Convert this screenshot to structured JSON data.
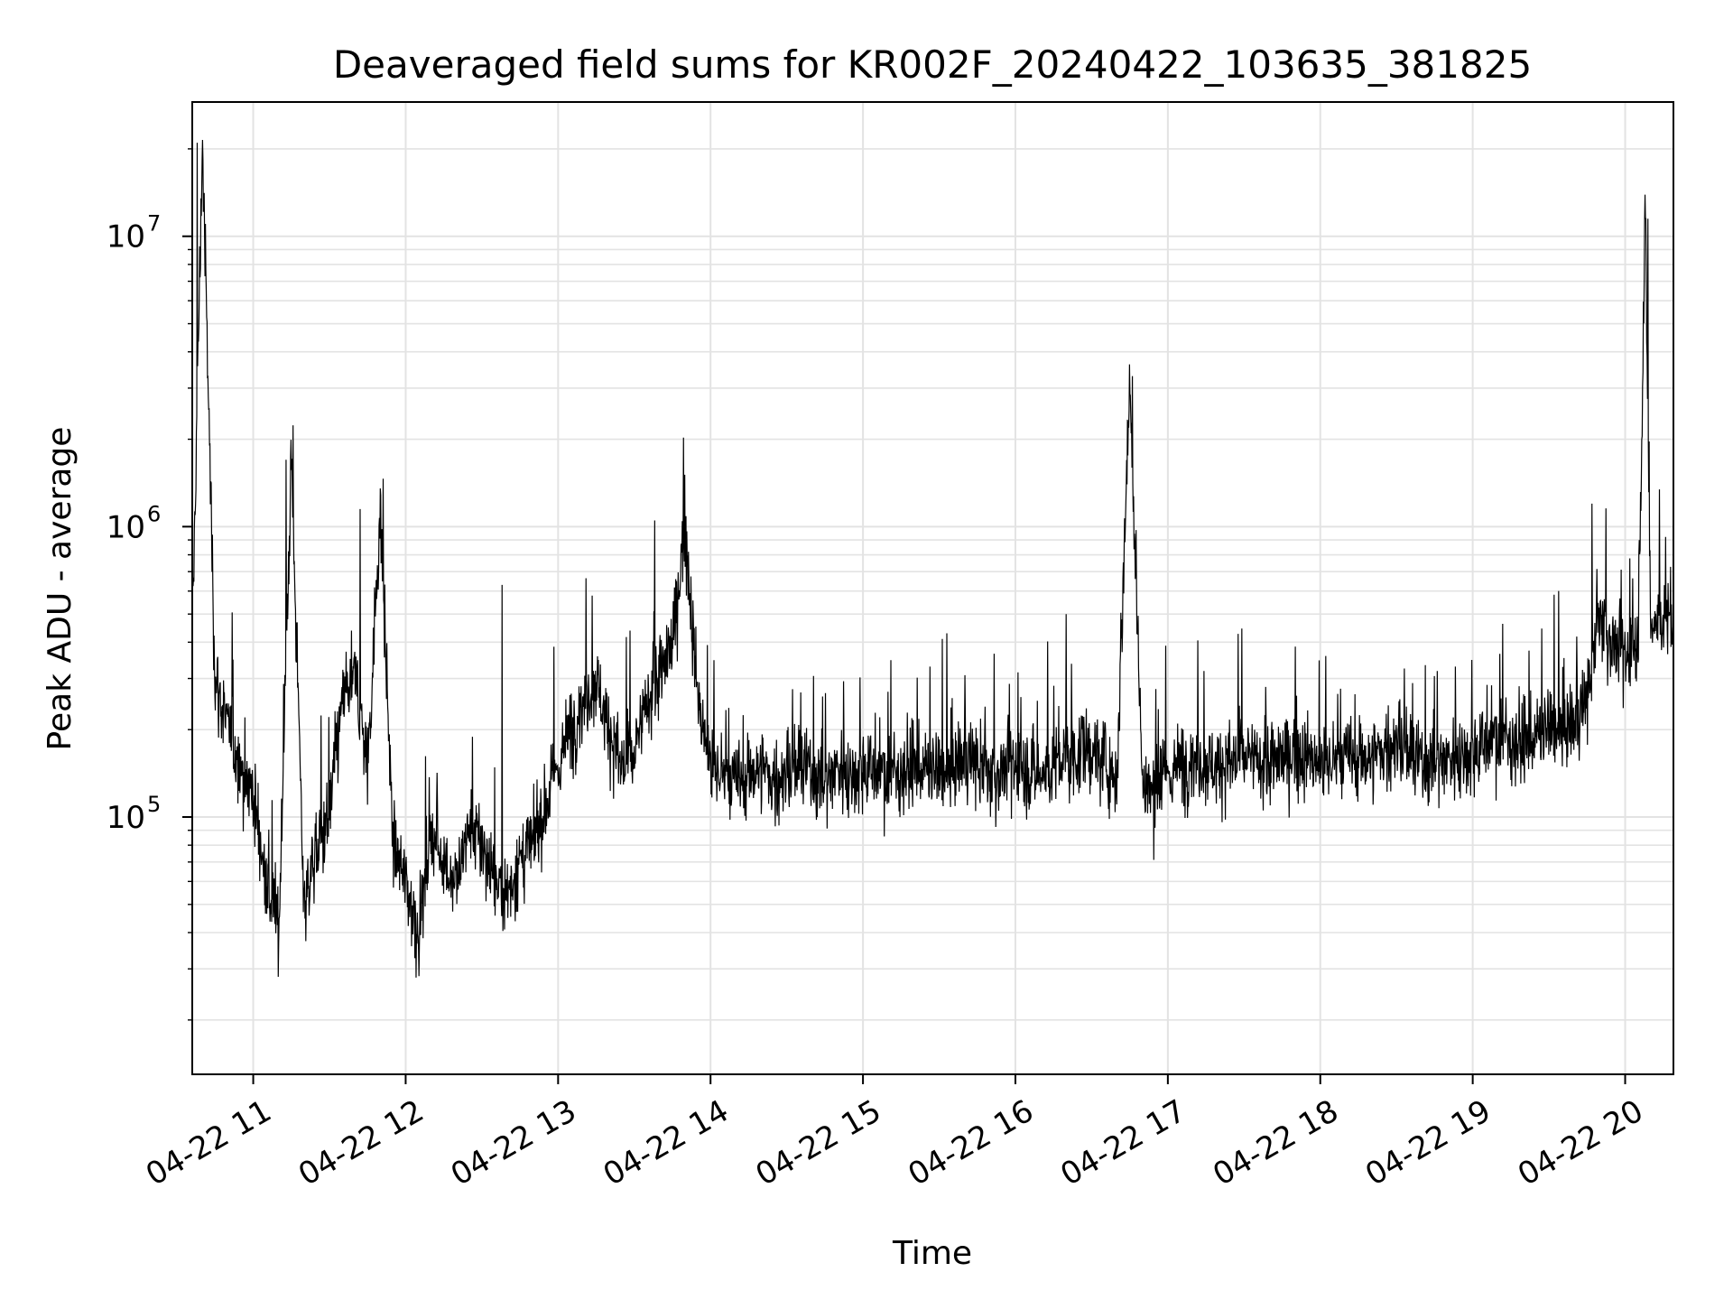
{
  "chart_data": {
    "type": "line",
    "title": "Deaveraged field sums for KR002F_20240422_103635_381825",
    "xlabel": "Time",
    "ylabel": "Peak ADU - average",
    "yscale": "log",
    "xlim": [
      "2024-04-22 10:36",
      "2024-04-22 20:19"
    ],
    "ylim": [
      13000,
      29000000
    ],
    "grid": true,
    "x_ticks": [
      {
        "time": "2024-04-22 11:00",
        "label": "04-22 11"
      },
      {
        "time": "2024-04-22 12:00",
        "label": "04-22 12"
      },
      {
        "time": "2024-04-22 13:00",
        "label": "04-22 13"
      },
      {
        "time": "2024-04-22 14:00",
        "label": "04-22 14"
      },
      {
        "time": "2024-04-22 15:00",
        "label": "04-22 15"
      },
      {
        "time": "2024-04-22 16:00",
        "label": "04-22 16"
      },
      {
        "time": "2024-04-22 17:00",
        "label": "04-22 17"
      },
      {
        "time": "2024-04-22 18:00",
        "label": "04-22 18"
      },
      {
        "time": "2024-04-22 19:00",
        "label": "04-22 19"
      },
      {
        "time": "2024-04-22 20:00",
        "label": "04-22 20"
      }
    ],
    "y_ticks": [
      {
        "value": 100000,
        "base": "10",
        "exp": "5"
      },
      {
        "value": 1000000,
        "base": "10",
        "exp": "6"
      },
      {
        "value": 10000000,
        "base": "10",
        "exp": "7"
      }
    ],
    "line_color": "#000000",
    "series": [
      {
        "x": [
          "2024-04-22 10:36",
          "2024-04-22 10:40",
          "2024-04-22 10:45",
          "2024-04-22 10:50",
          "2024-04-22 10:55",
          "2024-04-22 11:00",
          "2024-04-22 11:05",
          "2024-04-22 11:10",
          "2024-04-22 11:15",
          "2024-04-22 11:20",
          "2024-04-22 11:25",
          "2024-04-22 11:30",
          "2024-04-22 11:35",
          "2024-04-22 11:40",
          "2024-04-22 11:45",
          "2024-04-22 11:50",
          "2024-04-22 11:55",
          "2024-04-22 12:00",
          "2024-04-22 12:05",
          "2024-04-22 12:10",
          "2024-04-22 12:15",
          "2024-04-22 12:20",
          "2024-04-22 12:25",
          "2024-04-22 12:30",
          "2024-04-22 12:35",
          "2024-04-22 12:40",
          "2024-04-22 12:45",
          "2024-04-22 12:50",
          "2024-04-22 12:55",
          "2024-04-22 13:00",
          "2024-04-22 13:05",
          "2024-04-22 13:10",
          "2024-04-22 13:15",
          "2024-04-22 13:20",
          "2024-04-22 13:25",
          "2024-04-22 13:30",
          "2024-04-22 13:35",
          "2024-04-22 13:40",
          "2024-04-22 13:45",
          "2024-04-22 13:50",
          "2024-04-22 13:55",
          "2024-04-22 14:00",
          "2024-04-22 14:05",
          "2024-04-22 14:10",
          "2024-04-22 14:15",
          "2024-04-22 14:20",
          "2024-04-22 14:25",
          "2024-04-22 14:30",
          "2024-04-22 14:35",
          "2024-04-22 14:40",
          "2024-04-22 14:45",
          "2024-04-22 14:50",
          "2024-04-22 14:55",
          "2024-04-22 15:00",
          "2024-04-22 15:10",
          "2024-04-22 15:20",
          "2024-04-22 15:30",
          "2024-04-22 15:40",
          "2024-04-22 15:50",
          "2024-04-22 16:00",
          "2024-04-22 16:10",
          "2024-04-22 16:20",
          "2024-04-22 16:30",
          "2024-04-22 16:40",
          "2024-04-22 16:45",
          "2024-04-22 16:50",
          "2024-04-22 16:55",
          "2024-04-22 17:00",
          "2024-04-22 17:10",
          "2024-04-22 17:20",
          "2024-04-22 17:30",
          "2024-04-22 17:40",
          "2024-04-22 17:50",
          "2024-04-22 18:00",
          "2024-04-22 18:10",
          "2024-04-22 18:20",
          "2024-04-22 18:30",
          "2024-04-22 18:40",
          "2024-04-22 18:50",
          "2024-04-22 19:00",
          "2024-04-22 19:10",
          "2024-04-22 19:20",
          "2024-04-22 19:30",
          "2024-04-22 19:40",
          "2024-04-22 19:45",
          "2024-04-22 19:50",
          "2024-04-22 19:55",
          "2024-04-22 20:00",
          "2024-04-22 20:05",
          "2024-04-22 20:08",
          "2024-04-22 20:10",
          "2024-04-22 20:15",
          "2024-04-22 20:19"
        ],
        "y": [
          400000,
          21000000,
          300000,
          200000,
          150000,
          120000,
          60000,
          40000,
          1700000,
          50000,
          80000,
          100000,
          250000,
          300000,
          150000,
          1150000,
          80000,
          60000,
          40000,
          90000,
          70000,
          60000,
          90000,
          80000,
          60000,
          55000,
          70000,
          80000,
          110000,
          150000,
          200000,
          250000,
          300000,
          200000,
          150000,
          160000,
          250000,
          300000,
          400000,
          1000000,
          250000,
          150000,
          140000,
          130000,
          140000,
          150000,
          130000,
          140000,
          150000,
          140000,
          130000,
          150000,
          140000,
          150000,
          140000,
          150000,
          140000,
          160000,
          140000,
          150000,
          140000,
          160000,
          170000,
          140000,
          3300000,
          130000,
          120000,
          140000,
          160000,
          150000,
          160000,
          150000,
          170000,
          150000,
          160000,
          160000,
          180000,
          150000,
          160000,
          170000,
          190000,
          180000,
          200000,
          210000,
          250000,
          500000,
          400000,
          350000,
          400000,
          11500000,
          450000,
          500000,
          450000
        ],
        "noise": 0.9,
        "spikes": [
          [
            "2024-04-22 10:38",
            21000000
          ],
          [
            "2024-04-22 11:13",
            1700000
          ],
          [
            "2024-04-22 11:42",
            1150000
          ],
          [
            "2024-04-22 12:38",
            630000
          ],
          [
            "2024-04-22 13:38",
            1050000
          ],
          [
            "2024-04-22 16:20",
            500000
          ],
          [
            "2024-04-22 16:46",
            3300000
          ],
          [
            "2024-04-22 19:47",
            1200000
          ],
          [
            "2024-04-22 20:09",
            11500000
          ]
        ]
      }
    ]
  }
}
